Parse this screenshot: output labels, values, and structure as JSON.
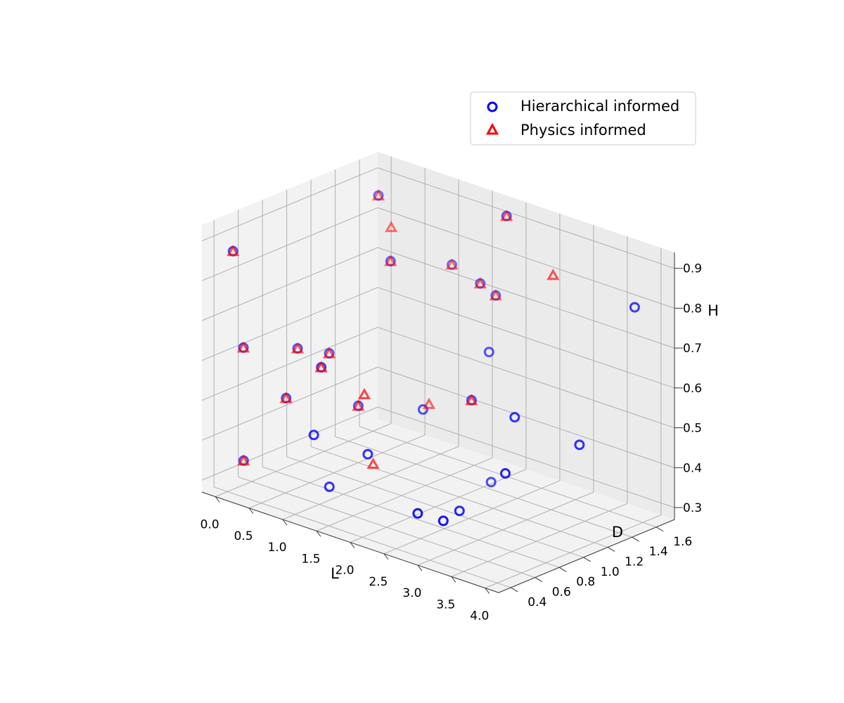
{
  "chart_data": {
    "type": "scatter",
    "projection": "3d",
    "title": "",
    "xlabel": "L",
    "ylabel": "D",
    "zlabel": "H",
    "x_ticks": [
      "0.0",
      "0.5",
      "1.0",
      "1.5",
      "2.0",
      "2.5",
      "3.0",
      "3.5",
      "4.0"
    ],
    "y_ticks": [
      "0.4",
      "0.6",
      "0.8",
      "1.0",
      "1.2",
      "1.4",
      "1.6"
    ],
    "z_ticks": [
      "0.3",
      "0.4",
      "0.5",
      "0.6",
      "0.7",
      "0.8",
      "0.9"
    ],
    "grid": true,
    "legend_position": "upper-right",
    "series": [
      {
        "name": "Hierarchical informed",
        "marker": "circle-open",
        "color": "#0000ff",
        "points": [
          {
            "x": 0.1,
            "y": 0.39,
            "z": 0.88
          },
          {
            "x": 0.2,
            "y": 0.42,
            "z": 0.64
          },
          {
            "x": 0.15,
            "y": 0.45,
            "z": 0.35
          },
          {
            "x": 0.5,
            "y": 0.7,
            "z": 0.62
          },
          {
            "x": 0.6,
            "y": 0.55,
            "z": 0.52
          },
          {
            "x": 0.7,
            "y": 0.85,
            "z": 0.6
          },
          {
            "x": 0.35,
            "y": 1.45,
            "z": 0.9
          },
          {
            "x": 0.8,
            "y": 1.3,
            "z": 0.78
          },
          {
            "x": 0.95,
            "y": 0.95,
            "z": 0.47
          },
          {
            "x": 1.55,
            "y": 0.25,
            "z": 0.52
          },
          {
            "x": 1.3,
            "y": 0.45,
            "z": 0.65
          },
          {
            "x": 1.8,
            "y": 1.7,
            "z": 0.9
          },
          {
            "x": 1.5,
            "y": 1.65,
            "z": 0.72
          },
          {
            "x": 0.9,
            "y": 1.75,
            "z": 0.72
          },
          {
            "x": 1.55,
            "y": 1.75,
            "z": 0.68
          },
          {
            "x": 1.9,
            "y": 1.5,
            "z": 0.59
          },
          {
            "x": 2.0,
            "y": 1.3,
            "z": 0.5
          },
          {
            "x": 1.55,
            "y": 1.15,
            "z": 0.47
          },
          {
            "x": 1.9,
            "y": 0.5,
            "z": 0.46
          },
          {
            "x": 1.6,
            "y": 0.35,
            "z": 0.38
          },
          {
            "x": 3.0,
            "y": 0.3,
            "z": 0.4
          },
          {
            "x": 3.0,
            "y": 1.1,
            "z": 0.54
          },
          {
            "x": 3.4,
            "y": 0.8,
            "z": 0.46
          },
          {
            "x": 3.6,
            "y": 1.3,
            "z": 0.48
          },
          {
            "x": 2.2,
            "y": 1.35,
            "z": 0.3
          },
          {
            "x": 2.9,
            "y": 0.7,
            "z": 0.35
          },
          {
            "x": 3.2,
            "y": 0.4,
            "z": 0.38
          },
          {
            "x": 3.7,
            "y": 1.7,
            "z": 0.78
          }
        ]
      },
      {
        "name": "Physics informed",
        "marker": "triangle-open",
        "color": "#ff0000",
        "points": [
          {
            "x": 0.1,
            "y": 0.39,
            "z": 0.88
          },
          {
            "x": 0.2,
            "y": 0.42,
            "z": 0.64
          },
          {
            "x": 0.15,
            "y": 0.45,
            "z": 0.35
          },
          {
            "x": 0.5,
            "y": 0.7,
            "z": 0.62
          },
          {
            "x": 0.6,
            "y": 0.55,
            "z": 0.52
          },
          {
            "x": 0.7,
            "y": 0.85,
            "z": 0.6
          },
          {
            "x": 0.35,
            "y": 1.45,
            "z": 0.9
          },
          {
            "x": 0.8,
            "y": 1.3,
            "z": 0.78
          },
          {
            "x": 0.95,
            "y": 0.95,
            "z": 0.47
          },
          {
            "x": 0.45,
            "y": 1.5,
            "z": 0.82
          },
          {
            "x": 1.3,
            "y": 0.45,
            "z": 0.65
          },
          {
            "x": 1.8,
            "y": 1.7,
            "z": 0.9
          },
          {
            "x": 1.5,
            "y": 1.65,
            "z": 0.72
          },
          {
            "x": 0.9,
            "y": 1.75,
            "z": 0.72
          },
          {
            "x": 1.55,
            "y": 1.75,
            "z": 0.68
          },
          {
            "x": 2.0,
            "y": 1.3,
            "z": 0.5
          },
          {
            "x": 1.1,
            "y": 1.45,
            "z": 0.42
          },
          {
            "x": 1.35,
            "y": 0.85,
            "z": 0.36
          },
          {
            "x": 1.4,
            "y": 0.75,
            "z": 0.55
          },
          {
            "x": 2.4,
            "y": 1.75,
            "z": 0.78
          }
        ]
      }
    ]
  }
}
